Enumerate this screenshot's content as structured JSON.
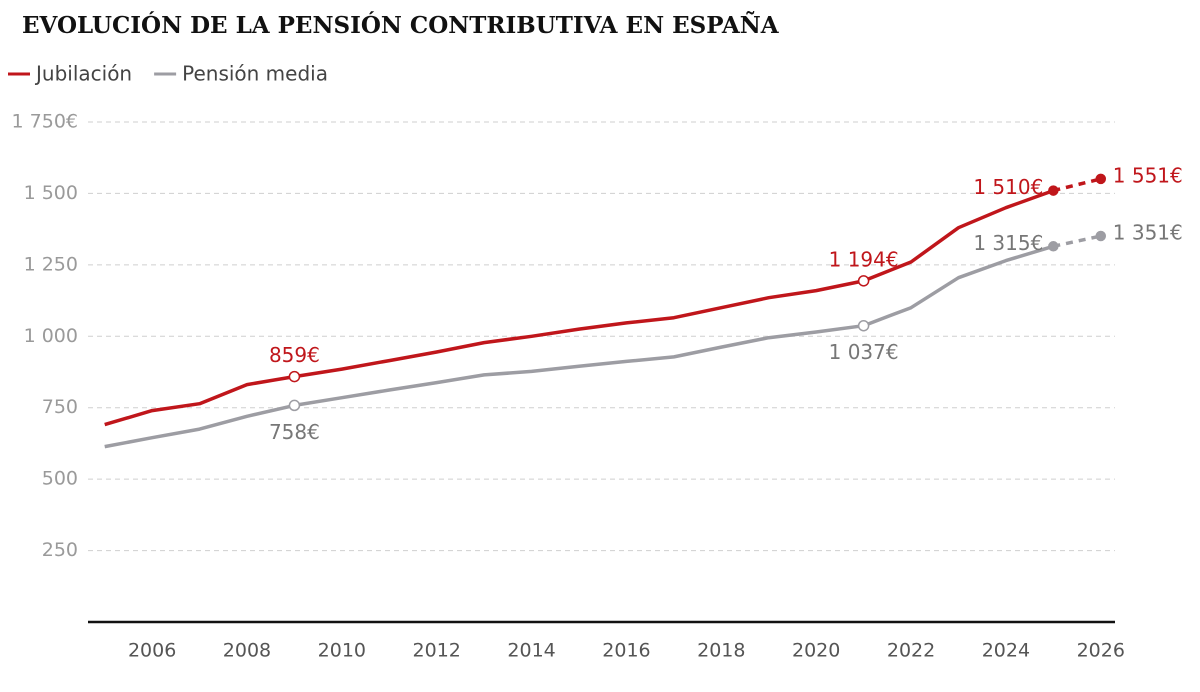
{
  "chart_data": {
    "type": "line",
    "title": "EVOLUCIÓN DE LA PENSIÓN CONTRIBUTIVA EN ESPAÑA",
    "x": [
      2005,
      2006,
      2007,
      2008,
      2009,
      2010,
      2011,
      2012,
      2013,
      2014,
      2015,
      2016,
      2017,
      2018,
      2019,
      2020,
      2021,
      2022,
      2023,
      2024,
      2025,
      2026
    ],
    "xlim": [
      2004.1,
      2026.3
    ],
    "xticks": [
      2006,
      2008,
      2010,
      2012,
      2014,
      2016,
      2018,
      2020,
      2022,
      2024,
      2026
    ],
    "ylim": [
      0,
      1750
    ],
    "yticks": [
      250,
      500,
      750,
      {
        "value": 1000,
        "label": "1 000"
      },
      {
        "value": 1250,
        "label": "1 250"
      },
      {
        "value": 1500,
        "label": "1 500"
      },
      {
        "value": 1750,
        "label": "1 750€"
      }
    ],
    "grid": true,
    "dashed_from_x": 2025,
    "series": [
      {
        "name": "Jubilación",
        "color": "#c0161b",
        "values": [
          691,
          740,
          764,
          831,
          859,
          885,
          915,
          945,
          978,
          1000,
          1025,
          1047,
          1065,
          1100,
          1135,
          1160,
          1194,
          1260,
          1380,
          1450,
          1510,
          1551
        ],
        "value_labels": [
          null,
          null,
          null,
          null,
          "859€",
          null,
          null,
          null,
          null,
          null,
          null,
          null,
          null,
          null,
          null,
          null,
          "1 194€",
          null,
          null,
          null,
          "1 510€",
          "1 551€"
        ]
      },
      {
        "name": "Pensión media",
        "color": "#9d9da3",
        "values": [
          614,
          645,
          675,
          720,
          758,
          785,
          812,
          838,
          865,
          877,
          895,
          912,
          928,
          962,
          995,
          1015,
          1037,
          1100,
          1205,
          1265,
          1315,
          1351
        ],
        "value_labels": [
          null,
          null,
          null,
          null,
          "758€",
          null,
          null,
          null,
          null,
          null,
          null,
          null,
          null,
          null,
          null,
          null,
          "1 037€",
          null,
          null,
          null,
          "1 315€",
          "1 351€"
        ]
      }
    ]
  }
}
